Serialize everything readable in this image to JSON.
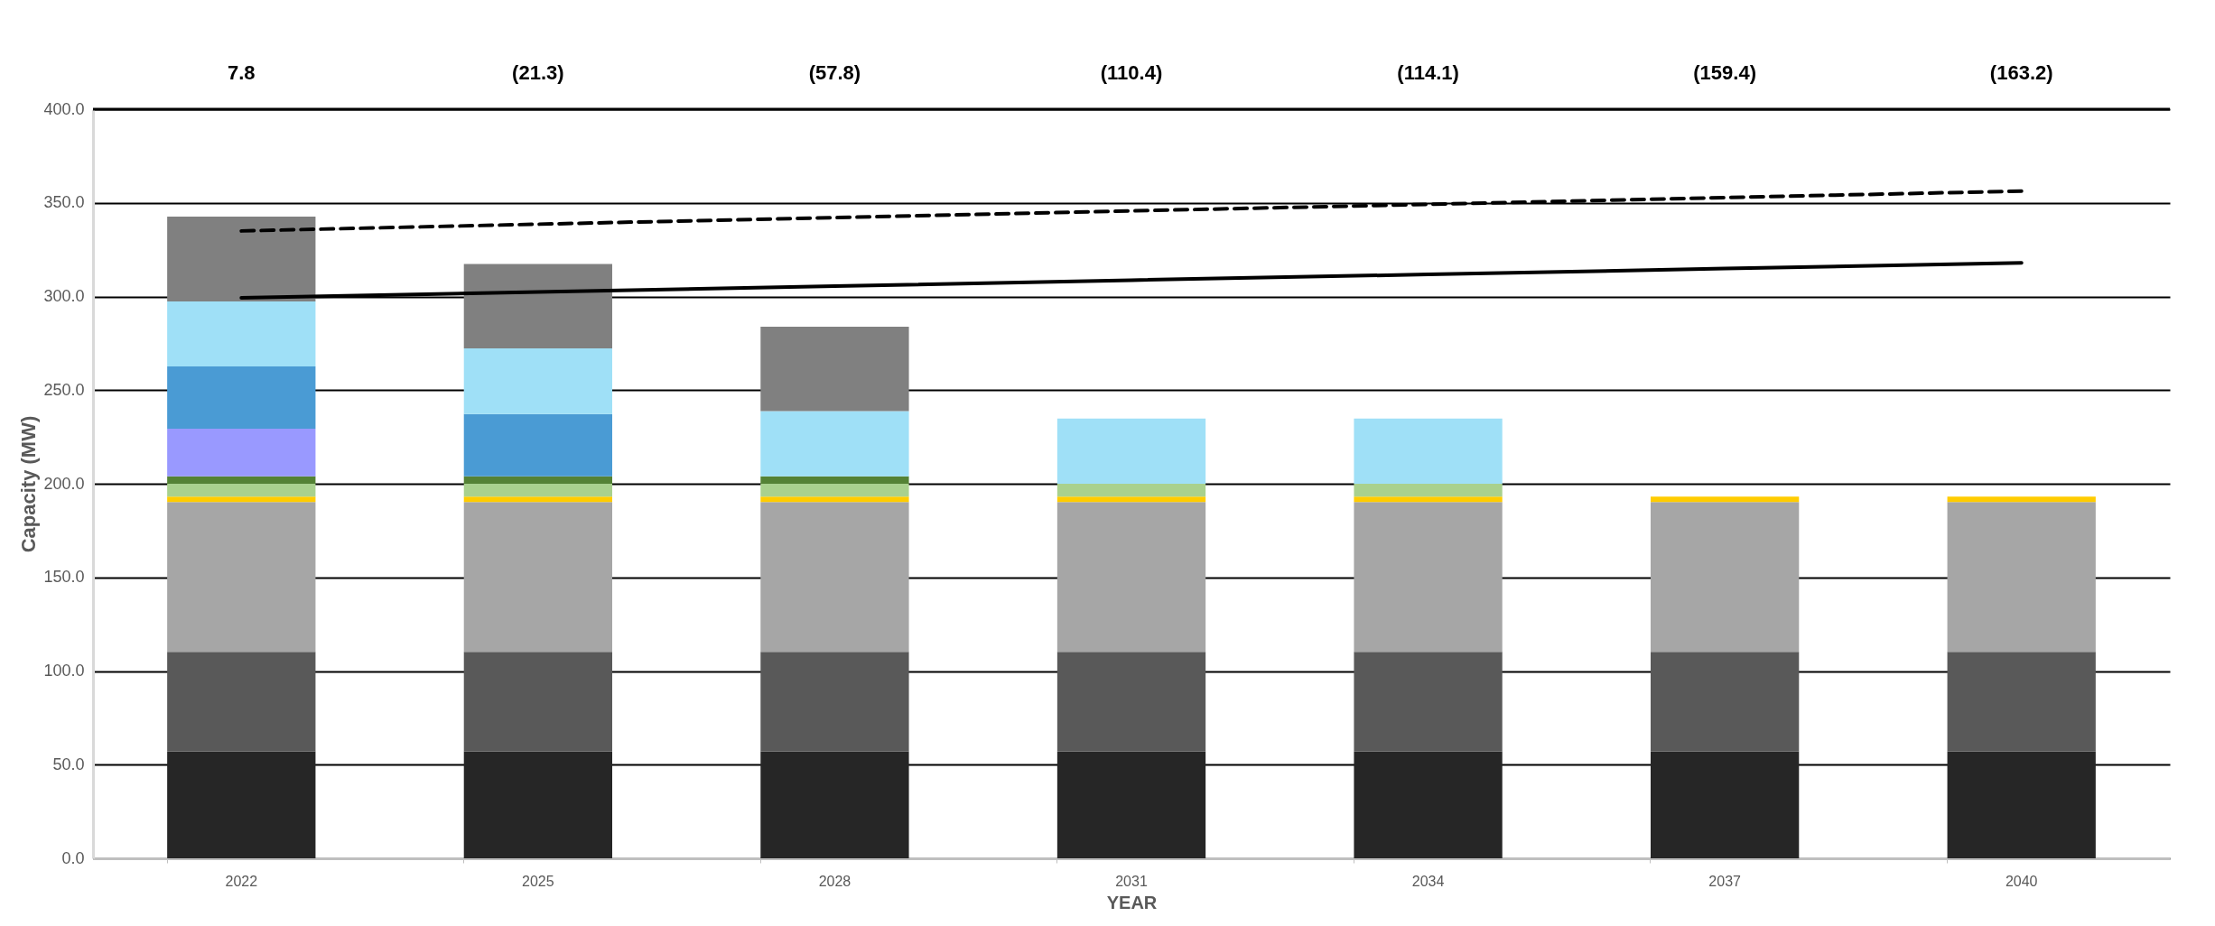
{
  "chart_data": {
    "type": "bar",
    "stacked": true,
    "xlabel": "YEAR",
    "ylabel": "Capacity (MW)",
    "categories": [
      "2022",
      "2025",
      "2028",
      "2031",
      "2034",
      "2037",
      "2040"
    ],
    "ylim": [
      0,
      400
    ],
    "yticks": [
      {
        "value": 0,
        "label": "0.0"
      },
      {
        "value": 50,
        "label": "50.0"
      },
      {
        "value": 100,
        "label": "100.0"
      },
      {
        "value": 150,
        "label": "150.0"
      },
      {
        "value": 200,
        "label": "200.0"
      },
      {
        "value": 250,
        "label": "250.0"
      },
      {
        "value": 300,
        "label": "300.0"
      },
      {
        "value": 350,
        "label": "350.0"
      },
      {
        "value": 400,
        "label": "400.0"
      }
    ],
    "grid": "y",
    "legend": false,
    "series": [
      {
        "color": "#262626",
        "values": [
          57.0,
          57.0,
          57.0,
          57.0,
          57.0,
          57.0,
          57.0
        ]
      },
      {
        "color": "#595959",
        "values": [
          53.2,
          53.2,
          53.2,
          53.2,
          53.2,
          53.2,
          53.2
        ]
      },
      {
        "color": "#a6a6a6",
        "values": [
          80.1,
          80.1,
          80.1,
          80.1,
          80.1,
          80.1,
          80.1
        ]
      },
      {
        "color": "#ffcc00",
        "values": [
          2.8,
          2.8,
          2.8,
          2.8,
          2.8,
          2.8,
          2.8
        ]
      },
      {
        "color": "#a9d18e",
        "values": [
          6.9,
          6.9,
          6.9,
          6.9,
          6.9,
          null,
          null
        ]
      },
      {
        "color": "#548235",
        "values": [
          4.0,
          4.0,
          4.0,
          null,
          null,
          null,
          null
        ]
      },
      {
        "color": "#9999ff",
        "values": [
          25.4,
          null,
          null,
          null,
          null,
          null,
          null
        ]
      },
      {
        "color": "#4a9bd4",
        "values": [
          33.2,
          33.2,
          null,
          null,
          null,
          null,
          null
        ]
      },
      {
        "color": "#9fe0f7",
        "values": [
          34.8,
          35.1,
          34.8,
          34.8,
          34.8,
          null,
          null
        ]
      },
      {
        "color": "#808080",
        "values": [
          45.3,
          45.0,
          45.0,
          null,
          null,
          null,
          null
        ]
      },
      {
        "type": "line",
        "color": "#000000",
        "line_style": "solid",
        "marker": "none",
        "values": [
          299.3,
          302.4,
          305.5,
          308.7,
          311.8,
          314.9,
          318.0
        ]
      },
      {
        "type": "line",
        "color": "#000000",
        "line_style": "dashed",
        "marker": "none",
        "values": [
          335.0,
          338.6,
          342.1,
          345.7,
          349.2,
          352.8,
          356.3
        ]
      }
    ],
    "annotations": [
      "7.8",
      "(21.3)",
      "(57.8)",
      "(110.4)",
      "(114.1)",
      "(159.4)",
      "(163.2)"
    ]
  }
}
